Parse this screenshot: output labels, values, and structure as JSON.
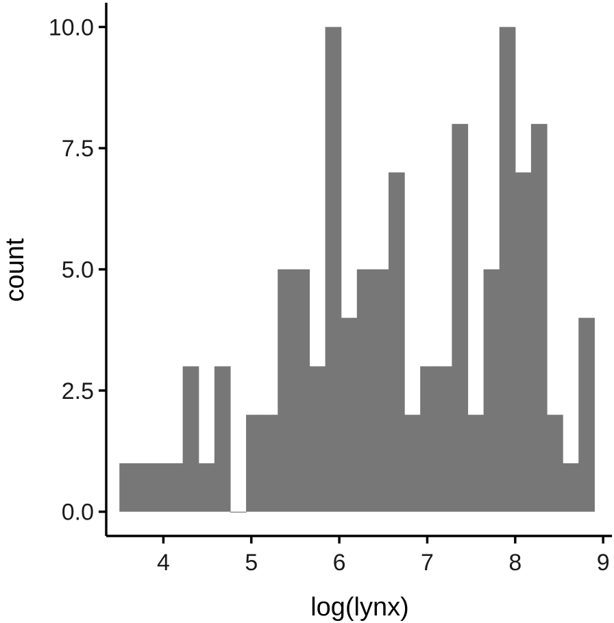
{
  "chart_data": {
    "type": "bar",
    "subtype": "histogram",
    "title": "",
    "xlabel": "log(lynx)",
    "ylabel": "count",
    "bar_color": "#777777",
    "grid": false,
    "legend": "none",
    "xlim": [
      3.35,
      9.1
    ],
    "ylim": [
      -0.5,
      10.5
    ],
    "x_ticks": [
      4,
      5,
      6,
      7,
      8,
      9
    ],
    "x_tick_labels": [
      "4",
      "5",
      "6",
      "7",
      "8",
      "9"
    ],
    "y_ticks": [
      0,
      2.5,
      5,
      7.5,
      10
    ],
    "y_tick_labels": [
      "0.0",
      "2.5",
      "5.0",
      "7.5",
      "10.0"
    ],
    "bin_start": 3.5,
    "bin_width": 0.18,
    "counts": [
      1,
      1,
      1,
      1,
      3,
      1,
      3,
      0,
      2,
      2,
      5,
      5,
      3,
      10,
      4,
      5,
      5,
      7,
      2,
      3,
      3,
      8,
      2,
      5,
      10,
      7,
      8,
      2,
      1,
      4
    ]
  }
}
